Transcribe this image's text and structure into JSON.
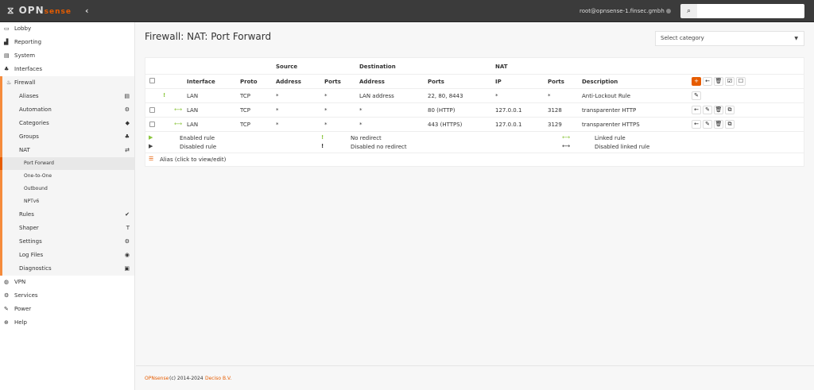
{
  "header": {
    "logo": "OPNsense",
    "user": "root@opnsense-1.finsec.gmbh",
    "search_value": ""
  },
  "sidebar": {
    "items": [
      {
        "label": "Lobby",
        "icon": "laptop-icon"
      },
      {
        "label": "Reporting",
        "icon": "area-chart-icon"
      },
      {
        "label": "System",
        "icon": "server-icon"
      },
      {
        "label": "Interfaces",
        "icon": "sitemap-icon"
      },
      {
        "label": "Firewall",
        "icon": "fire-icon"
      }
    ],
    "firewall_sub": [
      {
        "label": "Aliases",
        "icon": "list-alt-icon"
      },
      {
        "label": "Automation",
        "icon": "cog-icon"
      },
      {
        "label": "Categories",
        "icon": "tags-icon"
      },
      {
        "label": "Groups",
        "icon": "sitemap-icon"
      },
      {
        "label": "NAT",
        "icon": "exchange-icon"
      }
    ],
    "nat_sub": [
      {
        "label": "Port Forward",
        "active": true
      },
      {
        "label": "One-to-One"
      },
      {
        "label": "Outbound"
      },
      {
        "label": "NPTv6"
      }
    ],
    "firewall_sub2": [
      {
        "label": "Rules",
        "icon": "check-icon"
      },
      {
        "label": "Shaper",
        "icon": "filter-icon"
      },
      {
        "label": "Settings",
        "icon": "cogs-icon"
      },
      {
        "label": "Log Files",
        "icon": "eye-icon"
      },
      {
        "label": "Diagnostics",
        "icon": "medkit-icon"
      }
    ],
    "bottom": [
      {
        "label": "VPN",
        "icon": "globe-icon"
      },
      {
        "label": "Services",
        "icon": "cog-icon"
      },
      {
        "label": "Power",
        "icon": "plug-icon"
      },
      {
        "label": "Help",
        "icon": "life-ring-icon"
      }
    ]
  },
  "page": {
    "title": "Firewall: NAT: Port Forward",
    "category_placeholder": "Select category"
  },
  "table": {
    "groups": {
      "source": "Source",
      "destination": "Destination",
      "nat": "NAT"
    },
    "headers": {
      "interface": "Interface",
      "proto": "Proto",
      "src_addr": "Address",
      "src_ports": "Ports",
      "dst_addr": "Address",
      "dst_ports": "Ports",
      "nat_ip": "IP",
      "nat_ports": "Ports",
      "description": "Description"
    },
    "rows": [
      {
        "iface": "LAN",
        "proto": "TCP",
        "src_addr": "*",
        "src_ports": "*",
        "dst_addr": "LAN address",
        "dst_ports": "22, 80, 8443",
        "nat_ip": "*",
        "nat_ports": "*",
        "desc": "Anti-Lockout Rule",
        "status": "no-redirect"
      },
      {
        "iface": "LAN",
        "proto": "TCP",
        "src_addr": "*",
        "src_ports": "*",
        "dst_addr": "*",
        "dst_ports": "80 (HTTP)",
        "nat_ip": "127.0.0.1",
        "nat_ports": "3128",
        "desc": "transparenter HTTP",
        "status": "linked"
      },
      {
        "iface": "LAN",
        "proto": "TCP",
        "src_addr": "*",
        "src_ports": "*",
        "dst_addr": "*",
        "dst_ports": "443 (HTTPS)",
        "nat_ip": "127.0.0.1",
        "nat_ports": "3129",
        "desc": "transparenter HTTPS",
        "status": "linked"
      }
    ]
  },
  "legend": {
    "enabled": "Enabled rule",
    "disabled": "Disabled rule",
    "no_redirect": "No redirect",
    "disabled_no_redirect": "Disabled no redirect",
    "linked": "Linked rule",
    "disabled_linked": "Disabled linked rule",
    "alias": "Alias (click to view/edit)"
  },
  "footer": {
    "brand": "OPNsense",
    "copy": "(c) 2014-2024",
    "company": "Deciso B.V."
  },
  "colors": {
    "accent": "#e65c00",
    "green": "#8cc63f",
    "topbar": "#3b3b3b"
  }
}
